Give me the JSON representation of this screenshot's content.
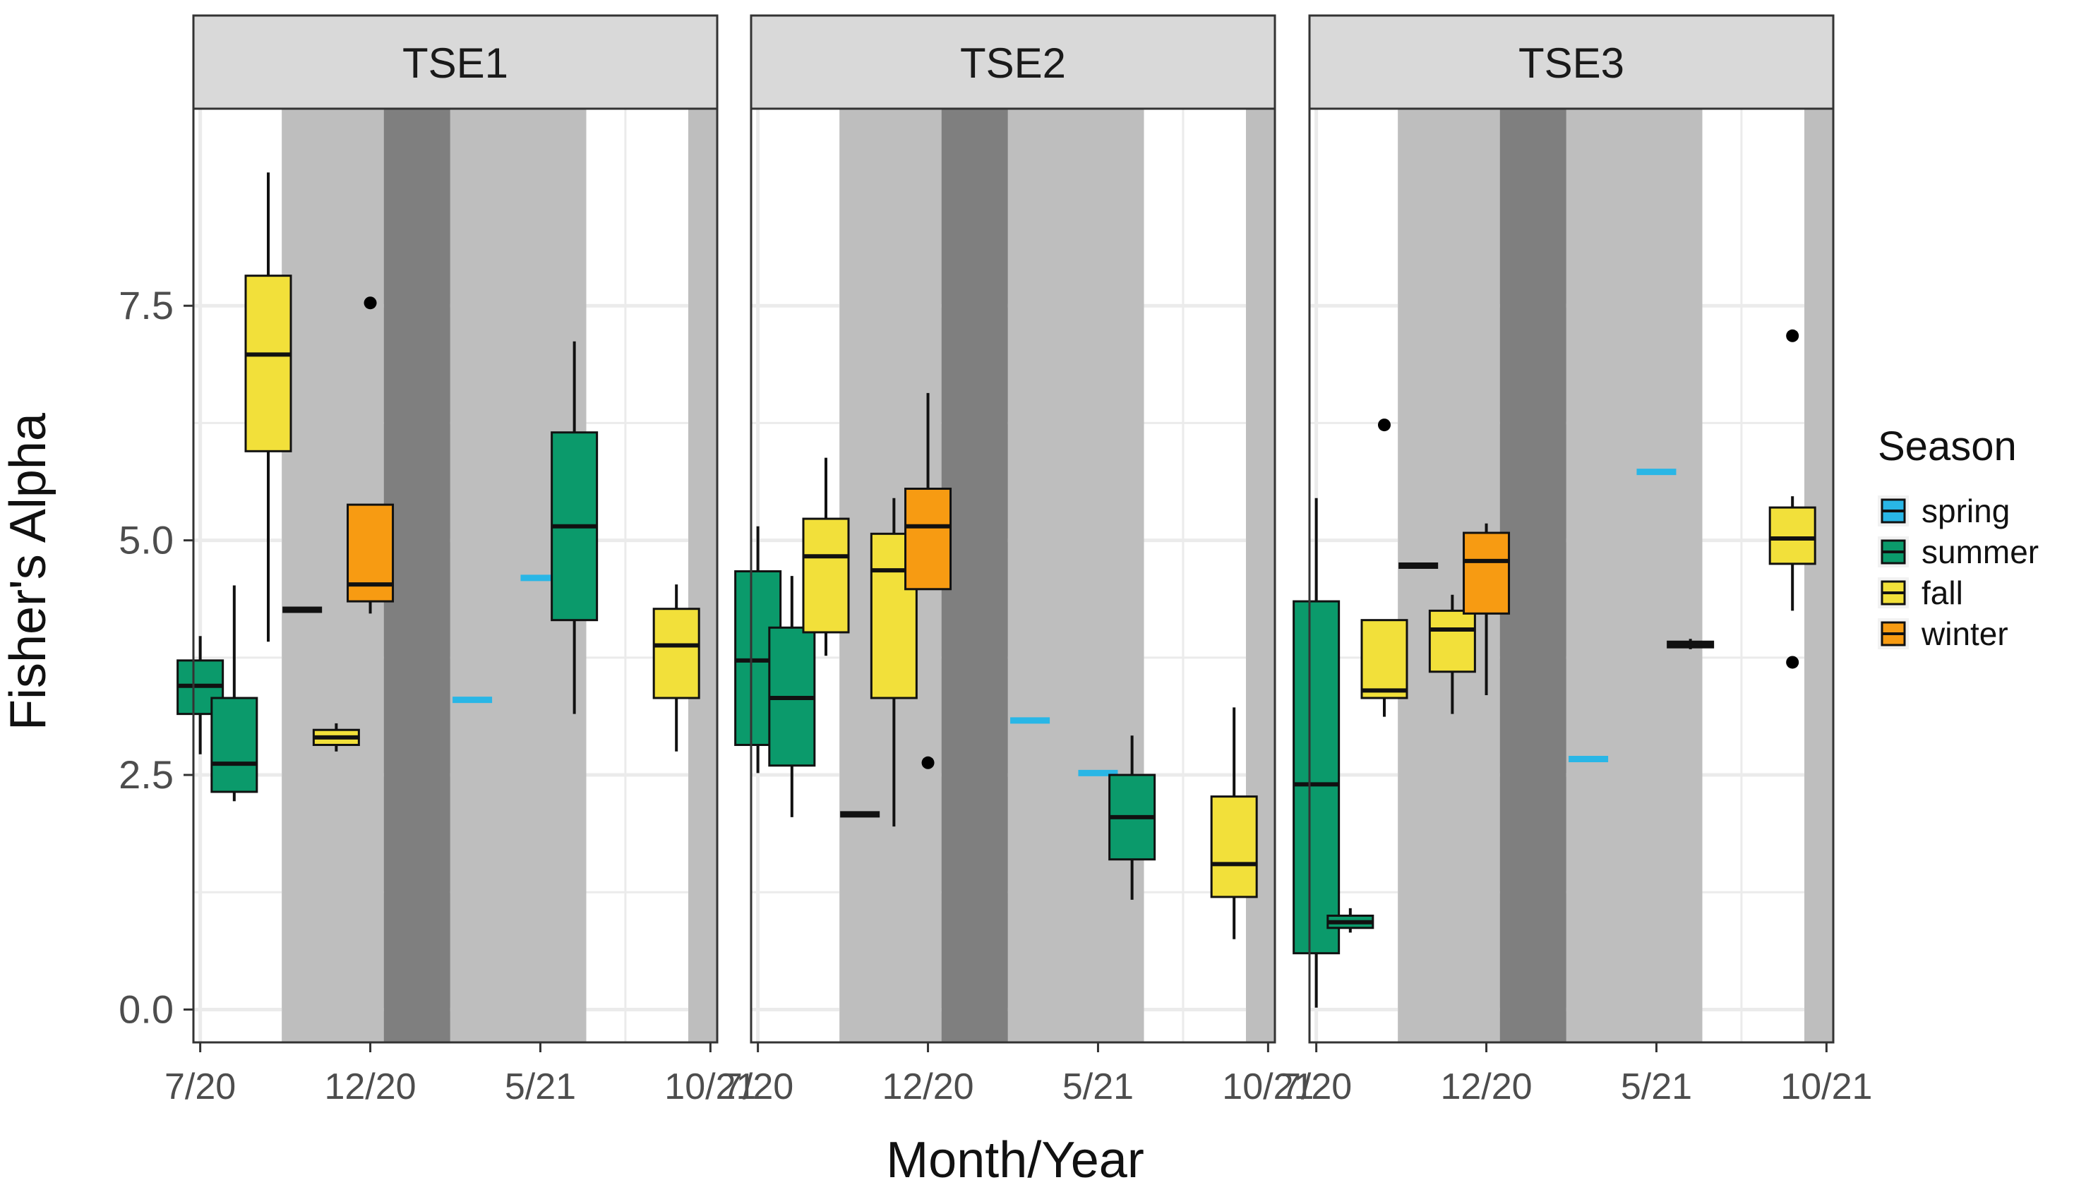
{
  "chart_data": {
    "type": "boxplot",
    "facet_by": "site",
    "xlabel": "Month/Year",
    "ylabel": "Fisher's Alpha",
    "y_ticks": [
      0.0,
      2.5,
      5.0,
      7.5
    ],
    "y_tick_labels": [
      "0.0",
      "2.5",
      "5.0",
      "7.5"
    ],
    "ylim": [
      -0.35,
      9.6
    ],
    "x_tick_labels": [
      "7/20",
      "12/20",
      "5/21",
      "10/21"
    ],
    "x_tick_months": [
      0,
      5,
      10,
      15
    ],
    "xlim_months": [
      -0.2,
      15.2
    ],
    "grid": true,
    "shading": [
      {
        "from": 2.4,
        "to": 5.4,
        "shade": "light"
      },
      {
        "from": 5.4,
        "to": 7.35,
        "shade": "dark"
      },
      {
        "from": 7.35,
        "to": 11.35,
        "shade": "light"
      },
      {
        "from": 14.35,
        "to": 15.2,
        "shade": "light"
      }
    ],
    "legend": {
      "title": "Season",
      "position": "right",
      "entries": [
        {
          "label": "spring",
          "color": "#29b6e6"
        },
        {
          "label": "summer",
          "color": "#0b9a6b"
        },
        {
          "label": "fall",
          "color": "#f2e03a"
        },
        {
          "label": "winter",
          "color": "#f79b12"
        }
      ]
    },
    "colors": {
      "panel_strip": "#d9d9d9",
      "shade_light": "#bebebe",
      "shade_dark": "#7f7f7f",
      "grid": "#ebebeb",
      "outline": "#333333"
    },
    "panels": [
      {
        "title": "TSE1",
        "boxes": [
          {
            "month": 0,
            "season": "summer",
            "min": 2.72,
            "q1": 3.15,
            "median": 3.45,
            "q3": 3.72,
            "max": 3.98,
            "outliers": []
          },
          {
            "month": 1,
            "season": "summer",
            "min": 2.22,
            "q1": 2.32,
            "median": 2.62,
            "q3": 3.32,
            "max": 4.52,
            "outliers": []
          },
          {
            "month": 2,
            "season": "fall",
            "min": 3.92,
            "q1": 5.95,
            "median": 6.98,
            "q3": 7.82,
            "max": 8.92,
            "outliers": []
          },
          {
            "month": 3,
            "season": "winter",
            "min": 4.26,
            "q1": 4.26,
            "median": 4.26,
            "q3": 4.26,
            "max": 4.26,
            "outliers": []
          },
          {
            "month": 4,
            "season": "fall",
            "min": 2.75,
            "q1": 2.82,
            "median": 2.9,
            "q3": 2.98,
            "max": 3.05,
            "outliers": []
          },
          {
            "month": 5,
            "season": "winter",
            "min": 4.22,
            "q1": 4.35,
            "median": 4.53,
            "q3": 5.38,
            "max": 5.38,
            "outliers": [
              7.53
            ]
          },
          {
            "month": 8,
            "season": "spring",
            "min": 3.3,
            "q1": 3.3,
            "median": 3.3,
            "q3": 3.3,
            "max": 3.3,
            "outliers": []
          },
          {
            "month": 10,
            "season": "spring",
            "min": 4.6,
            "q1": 4.6,
            "median": 4.6,
            "q3": 4.6,
            "max": 4.6,
            "outliers": []
          },
          {
            "month": 11,
            "season": "summer",
            "min": 3.15,
            "q1": 4.15,
            "median": 5.15,
            "q3": 6.15,
            "max": 7.12,
            "outliers": []
          },
          {
            "month": 14,
            "season": "fall",
            "min": 2.75,
            "q1": 3.32,
            "median": 3.88,
            "q3": 4.27,
            "max": 4.53,
            "outliers": []
          }
        ]
      },
      {
        "title": "TSE2",
        "boxes": [
          {
            "month": 0,
            "season": "summer",
            "min": 2.52,
            "q1": 2.82,
            "median": 3.72,
            "q3": 4.67,
            "max": 5.15,
            "outliers": []
          },
          {
            "month": 1,
            "season": "summer",
            "min": 2.05,
            "q1": 2.6,
            "median": 3.32,
            "q3": 4.07,
            "max": 4.62,
            "outliers": []
          },
          {
            "month": 2,
            "season": "fall",
            "min": 3.77,
            "q1": 4.02,
            "median": 4.83,
            "q3": 5.23,
            "max": 5.88,
            "outliers": []
          },
          {
            "month": 3,
            "season": "winter",
            "min": 2.08,
            "q1": 2.08,
            "median": 2.08,
            "q3": 2.08,
            "max": 2.08,
            "outliers": []
          },
          {
            "month": 4,
            "season": "fall",
            "min": 1.95,
            "q1": 3.32,
            "median": 4.68,
            "q3": 5.07,
            "max": 5.45,
            "outliers": []
          },
          {
            "month": 5,
            "season": "winter",
            "min": 4.48,
            "q1": 4.48,
            "median": 5.15,
            "q3": 5.55,
            "max": 6.57,
            "outliers": [
              2.63
            ]
          },
          {
            "month": 8,
            "season": "spring",
            "min": 3.08,
            "q1": 3.08,
            "median": 3.08,
            "q3": 3.08,
            "max": 3.08,
            "outliers": []
          },
          {
            "month": 10,
            "season": "spring",
            "min": 2.52,
            "q1": 2.52,
            "median": 2.52,
            "q3": 2.52,
            "max": 2.52,
            "outliers": []
          },
          {
            "month": 11,
            "season": "summer",
            "min": 1.17,
            "q1": 1.6,
            "median": 2.05,
            "q3": 2.5,
            "max": 2.92,
            "outliers": []
          },
          {
            "month": 14,
            "season": "fall",
            "min": 0.75,
            "q1": 1.2,
            "median": 1.55,
            "q3": 2.27,
            "max": 3.22,
            "outliers": []
          }
        ]
      },
      {
        "title": "TSE3",
        "boxes": [
          {
            "month": 0,
            "season": "summer",
            "min": 0.02,
            "q1": 0.6,
            "median": 2.4,
            "q3": 4.35,
            "max": 5.45,
            "outliers": []
          },
          {
            "month": 1,
            "season": "summer",
            "min": 0.82,
            "q1": 0.87,
            "median": 0.93,
            "q3": 1.0,
            "max": 1.08,
            "outliers": []
          },
          {
            "month": 2,
            "season": "fall",
            "min": 3.12,
            "q1": 3.32,
            "median": 3.4,
            "q3": 4.15,
            "max": 4.15,
            "outliers": [
              6.23
            ]
          },
          {
            "month": 3,
            "season": "winter",
            "min": 4.73,
            "q1": 4.73,
            "median": 4.73,
            "q3": 4.73,
            "max": 4.73,
            "outliers": []
          },
          {
            "month": 4,
            "season": "fall",
            "min": 3.15,
            "q1": 3.6,
            "median": 4.05,
            "q3": 4.25,
            "max": 4.42,
            "outliers": []
          },
          {
            "month": 5,
            "season": "winter",
            "min": 3.35,
            "q1": 4.22,
            "median": 4.78,
            "q3": 5.08,
            "max": 5.18,
            "outliers": []
          },
          {
            "month": 8,
            "season": "spring",
            "min": 2.67,
            "q1": 2.67,
            "median": 2.67,
            "q3": 2.67,
            "max": 2.67,
            "outliers": []
          },
          {
            "month": 10,
            "season": "spring",
            "min": 5.73,
            "q1": 5.73,
            "median": 5.73,
            "q3": 5.73,
            "max": 5.73,
            "outliers": []
          },
          {
            "month": 11,
            "season": "winter",
            "min": 3.84,
            "q1": 3.86,
            "median": 3.89,
            "q3": 3.92,
            "max": 3.95,
            "outliers": []
          },
          {
            "month": 14,
            "season": "fall",
            "min": 4.25,
            "q1": 4.75,
            "median": 5.02,
            "q3": 5.35,
            "max": 5.47,
            "outliers": [
              7.18,
              3.7
            ]
          }
        ]
      }
    ]
  }
}
